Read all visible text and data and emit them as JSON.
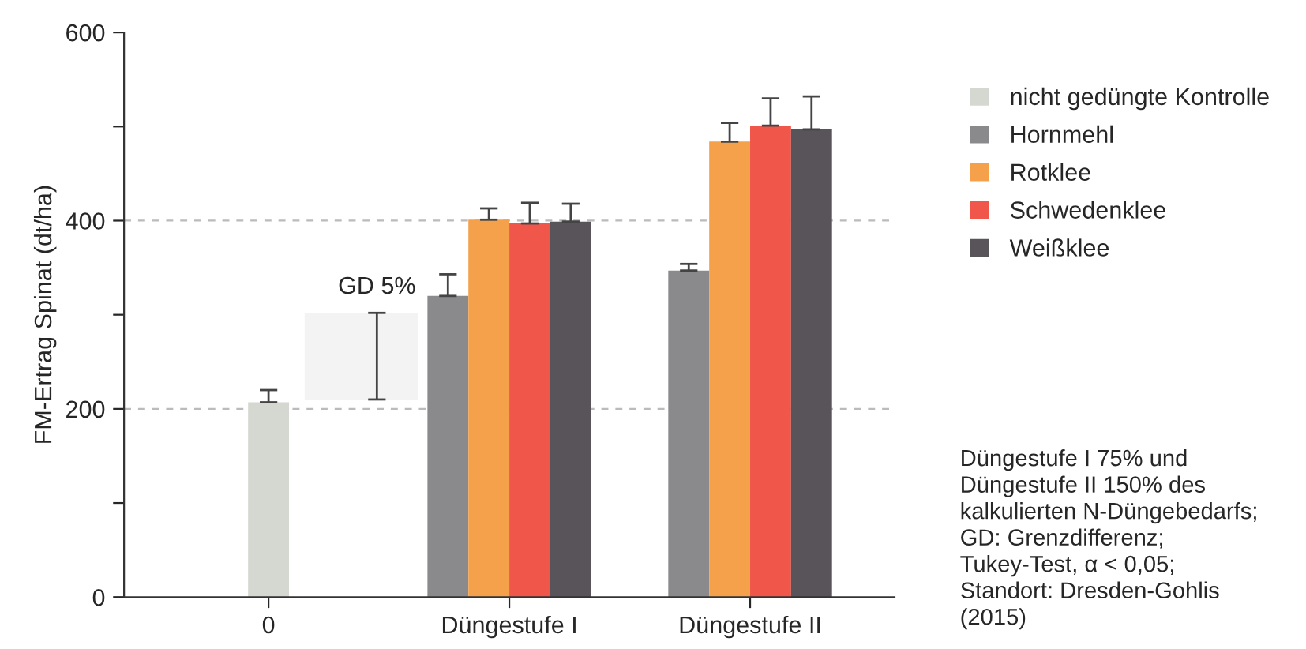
{
  "chart_data": {
    "type": "bar",
    "ylabel": "FM-Ertrag Spinat (dt/ha)",
    "categories": [
      "0",
      "Düngestufe I",
      "Düngestufe II"
    ],
    "series": [
      {
        "name": "nicht gedüngte Kontrolle",
        "color": "#d4d8d0",
        "values": [
          207,
          null,
          null
        ],
        "errors": [
          [
            207,
            220
          ],
          null,
          null
        ]
      },
      {
        "name": "Hornmehl",
        "color": "#8a8a8c",
        "values": [
          null,
          320,
          347
        ],
        "errors": [
          null,
          [
            320,
            343
          ],
          [
            347,
            354
          ]
        ]
      },
      {
        "name": "Rotklee",
        "color": "#f5a04a",
        "values": [
          null,
          401,
          484
        ],
        "errors": [
          null,
          [
            401,
            413
          ],
          [
            484,
            504
          ]
        ]
      },
      {
        "name": "Schwedenklee",
        "color": "#f0564a",
        "values": [
          null,
          397,
          501
        ],
        "errors": [
          null,
          [
            397,
            419
          ],
          [
            501,
            530
          ]
        ]
      },
      {
        "name": "Weißklee",
        "color": "#58545a",
        "values": [
          null,
          399,
          497
        ],
        "errors": [
          null,
          [
            399,
            418
          ],
          [
            497,
            532
          ]
        ]
      }
    ],
    "ylim": [
      0,
      600
    ],
    "yticks": [
      0,
      {
        "value": 100,
        "label": null
      },
      200,
      {
        "value": 300,
        "label": null
      },
      400,
      {
        "value": 500,
        "label": null
      },
      600
    ],
    "grid": "y",
    "legend": "right",
    "bands": [
      {
        "axis": "y",
        "from": 210,
        "to": 302,
        "label": "GD 5%"
      }
    ],
    "annotations": [
      "Düngestufe I 75% und\nDüngestufe II 150% des\nkalkulierten N-Düngebedarfs;\nGD: Grenzdifferenz;\nTukey-Test, α < 0,05;\nStandort: Dresden-Gohlis\n(2015)"
    ]
  }
}
